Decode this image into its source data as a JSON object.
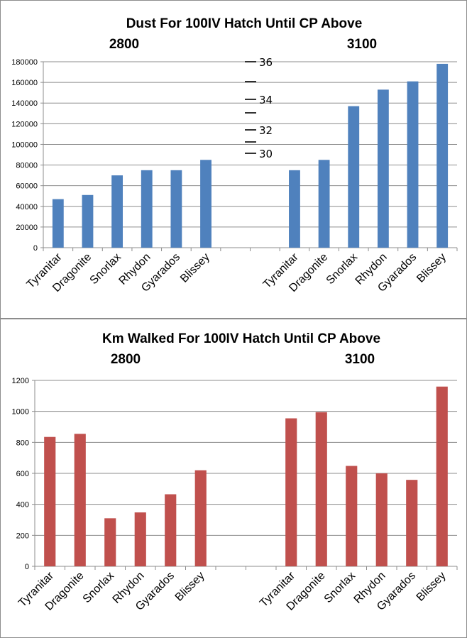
{
  "chart_data": [
    {
      "type": "bar",
      "title": "Dust For 100IV Hatch Until CP Above",
      "group_labels": [
        "2800",
        "3100"
      ],
      "categories": [
        "Tyranitar",
        "Dragonite",
        "Snorlax",
        "Rhydon",
        "Gyarados",
        "Blissey",
        "",
        "",
        "Tyranitar",
        "Dragonite",
        "Snorlax",
        "Rhydon",
        "Gyarados",
        "Blissey"
      ],
      "values": [
        47000,
        51000,
        70000,
        75000,
        75000,
        85000,
        null,
        null,
        75000,
        85000,
        137000,
        153000,
        161000,
        178000
      ],
      "ylim": [
        0,
        180000
      ],
      "yticks": [
        "0",
        "20000",
        "40000",
        "60000",
        "80000",
        "100000",
        "120000",
        "140000",
        "160000",
        "180000"
      ],
      "bar_color": "#4f81bd",
      "grid": true,
      "annotations": [
        "36",
        "34",
        "32",
        "30"
      ]
    },
    {
      "type": "bar",
      "title": "Km Walked For 100IV Hatch Until CP Above",
      "group_labels": [
        "2800",
        "3100"
      ],
      "categories": [
        "Tyranitar",
        "Dragonite",
        "Snorlax",
        "Rhydon",
        "Gyarados",
        "Blissey",
        "",
        "",
        "Tyranitar",
        "Dragonite",
        "Snorlax",
        "Rhydon",
        "Gyarados",
        "Blissey"
      ],
      "values": [
        835,
        855,
        310,
        348,
        465,
        620,
        null,
        null,
        955,
        995,
        648,
        600,
        558,
        1160
      ],
      "ylim": [
        0,
        1200
      ],
      "yticks": [
        "0",
        "200",
        "400",
        "600",
        "800",
        "1000",
        "1200"
      ],
      "bar_color": "#c0504d",
      "grid": true
    }
  ]
}
